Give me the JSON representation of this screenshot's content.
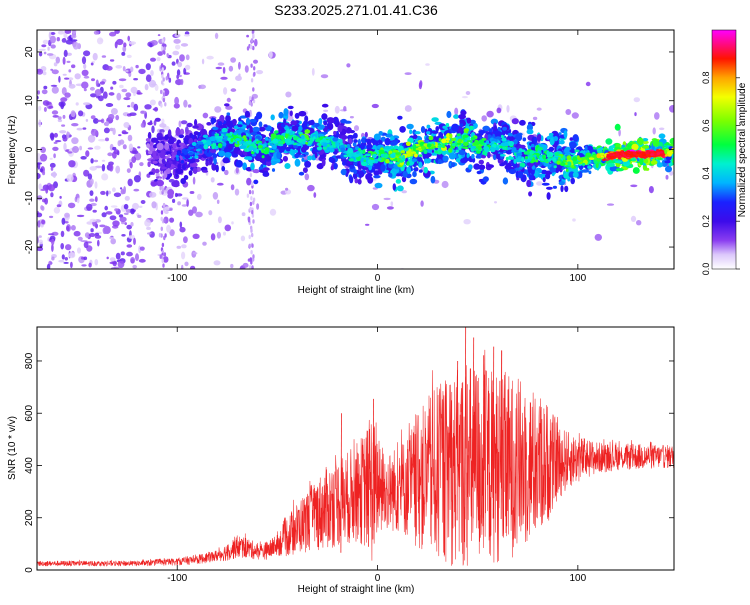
{
  "chart_data": [
    {
      "type": "heatmap",
      "title": "S233.2025.271.01.41.C36",
      "xlabel": "Height of straight line (km)",
      "ylabel": "Frequency (Hz)",
      "xlim": [
        -170,
        148
      ],
      "ylim": [
        -24.5,
        24.5
      ],
      "x_ticks": [
        -100,
        0,
        100
      ],
      "y_ticks": [
        -20,
        -10,
        0,
        10,
        20
      ],
      "colorbar": {
        "label": "Normalized spectral amplitude",
        "range": [
          0.0,
          1.0
        ],
        "ticks": [
          0.0,
          0.2,
          0.4,
          0.6,
          0.8
        ],
        "tick_labels": [
          "0.0",
          "0.2",
          "0.4",
          "0.6",
          "0.8"
        ],
        "stops": [
          {
            "v": 0.0,
            "color": "#ffffff"
          },
          {
            "v": 0.06,
            "color": "#dcc8fb"
          },
          {
            "v": 0.12,
            "color": "#8a3df0"
          },
          {
            "v": 0.2,
            "color": "#3c0bea"
          },
          {
            "v": 0.28,
            "color": "#1a22ff"
          },
          {
            "v": 0.36,
            "color": "#00b4ff"
          },
          {
            "v": 0.44,
            "color": "#00f0d0"
          },
          {
            "v": 0.52,
            "color": "#00ff40"
          },
          {
            "v": 0.62,
            "color": "#7cff00"
          },
          {
            "v": 0.72,
            "color": "#f4ff00"
          },
          {
            "v": 0.8,
            "color": "#ffa500"
          },
          {
            "v": 0.88,
            "color": "#ff1400"
          },
          {
            "v": 1.0,
            "color": "#ff00ff"
          }
        ]
      },
      "ridge_centerline": {
        "x": [
          -110,
          -95,
          -85,
          -75,
          -65,
          -55,
          -45,
          -35,
          -25,
          -18,
          -12,
          -5,
          0,
          5,
          10,
          15,
          20,
          25,
          30,
          35,
          40,
          45,
          50,
          55,
          60,
          65,
          70,
          75,
          80,
          85,
          90,
          95,
          100,
          105,
          110,
          115,
          120,
          125,
          130,
          135,
          140,
          148
        ],
        "y": [
          -1,
          -1,
          1,
          3,
          1,
          0.5,
          2.5,
          2,
          1.5,
          1,
          -1.5,
          -2,
          -1,
          -1.5,
          -2,
          -1,
          0,
          0.5,
          1,
          1.5,
          1,
          2,
          1,
          0.5,
          1,
          0.5,
          -1,
          -1.5,
          -1,
          -1.5,
          -2,
          -3,
          -2,
          -2,
          -1.5,
          -1.5,
          -1,
          -1,
          -1,
          -1,
          -0.8,
          -0.8
        ],
        "amplitude": [
          0.25,
          0.3,
          0.4,
          0.45,
          0.5,
          0.45,
          0.5,
          0.5,
          0.45,
          0.4,
          0.4,
          0.45,
          0.5,
          0.55,
          0.55,
          0.6,
          0.6,
          0.55,
          0.6,
          0.6,
          0.55,
          0.5,
          0.5,
          0.45,
          0.45,
          0.45,
          0.4,
          0.45,
          0.5,
          0.5,
          0.5,
          0.55,
          0.55,
          0.6,
          0.7,
          0.8,
          0.85,
          0.9,
          0.9,
          0.85,
          0.8,
          0.75
        ]
      }
    },
    {
      "type": "line",
      "xlabel": "Height of straight line (km)",
      "ylabel": "SNR (10 * v/v)",
      "xlim": [
        -170,
        148
      ],
      "ylim": [
        0,
        930
      ],
      "x_ticks": [
        -100,
        0,
        100
      ],
      "y_ticks": [
        0,
        200,
        400,
        600,
        800
      ],
      "color": "#ee2222",
      "envelope": {
        "x": [
          -170,
          -150,
          -120,
          -110,
          -100,
          -90,
          -80,
          -75,
          -70,
          -65,
          -60,
          -55,
          -50,
          -45,
          -40,
          -35,
          -30,
          -25,
          -20,
          -15,
          -10,
          -5,
          -3,
          0,
          5,
          10,
          15,
          20,
          25,
          30,
          35,
          40,
          45,
          50,
          55,
          60,
          65,
          70,
          75,
          80,
          85,
          90,
          95,
          100,
          110,
          120,
          130,
          140,
          148
        ],
        "mean": [
          25,
          25,
          25,
          28,
          32,
          40,
          55,
          70,
          90,
          85,
          70,
          75,
          95,
          130,
          160,
          190,
          215,
          240,
          260,
          275,
          300,
          310,
          320,
          310,
          300,
          310,
          320,
          340,
          360,
          370,
          380,
          390,
          395,
          400,
          400,
          395,
          395,
          400,
          400,
          405,
          410,
          415,
          420,
          425,
          430,
          432,
          434,
          434,
          434
        ],
        "spread": [
          10,
          10,
          10,
          12,
          14,
          18,
          22,
          35,
          45,
          40,
          30,
          35,
          40,
          80,
          100,
          120,
          140,
          160,
          170,
          180,
          190,
          240,
          300,
          200,
          150,
          170,
          200,
          260,
          300,
          340,
          360,
          380,
          400,
          390,
          380,
          370,
          360,
          340,
          310,
          280,
          230,
          150,
          110,
          90,
          60,
          50,
          50,
          45,
          45
        ],
        "peaks": [
          {
            "x": 44,
            "y": 930
          },
          {
            "x": 48,
            "y": 890
          },
          {
            "x": 58,
            "y": 855
          },
          {
            "x": 62,
            "y": 840
          },
          {
            "x": 53,
            "y": 822
          },
          {
            "x": 40,
            "y": 800
          },
          {
            "x": -2,
            "y": 655
          },
          {
            "x": -18,
            "y": 600
          }
        ]
      }
    }
  ]
}
